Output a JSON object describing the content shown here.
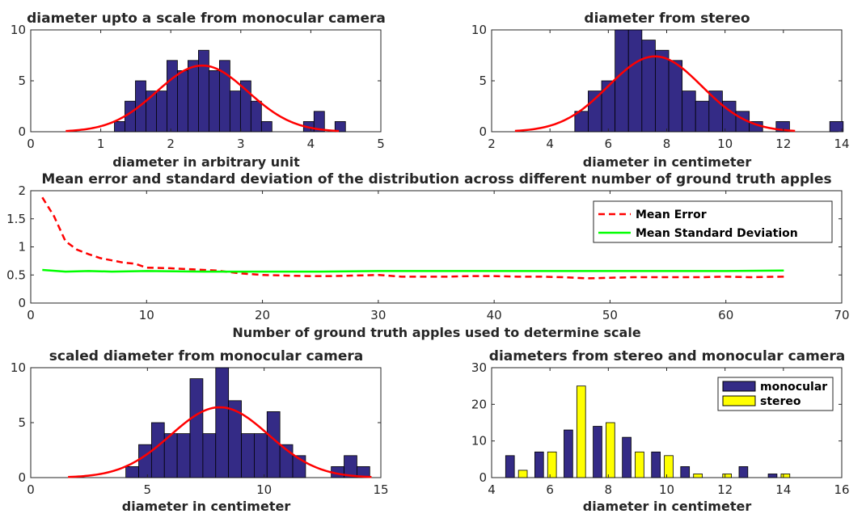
{
  "colors": {
    "bar": "#342b86",
    "bar_edge": "#000000",
    "fit": "#ff0000",
    "mean_error": "#ff0000",
    "mean_std": "#00ff00",
    "stereo": "#ffff00"
  },
  "chart_data": [
    {
      "id": "p1",
      "type": "bar",
      "title": "diameter upto a scale from monocular camera",
      "xlabel": "diameter in arbitrary unit",
      "ylabel": "",
      "xlim": [
        0,
        5
      ],
      "ylim": [
        0,
        10
      ],
      "xticks": [
        0,
        1,
        2,
        3,
        4,
        5
      ],
      "yticks": [
        0,
        5,
        10
      ],
      "bin_width": 0.15,
      "bin_centers": [
        1.27,
        1.42,
        1.57,
        1.72,
        1.87,
        2.02,
        2.17,
        2.32,
        2.47,
        2.62,
        2.77,
        2.92,
        3.07,
        3.22,
        3.37,
        3.52,
        3.67,
        3.82,
        3.97,
        4.12,
        4.27,
        4.42
      ],
      "values": [
        1,
        3,
        5,
        4,
        4,
        7,
        6,
        7,
        8,
        6,
        7,
        4,
        5,
        3,
        1,
        0,
        0,
        0,
        1,
        2,
        0,
        1
      ],
      "fit_curve": {
        "x_from": 0.5,
        "x_to": 4.4,
        "mean": 2.45,
        "sd": 0.65,
        "peak": 6.5
      }
    },
    {
      "id": "p2",
      "type": "bar",
      "title": "diameter from stereo",
      "xlabel": "diameter in centimeter",
      "ylabel": "",
      "xlim": [
        2,
        14
      ],
      "ylim": [
        0,
        10
      ],
      "xticks": [
        2,
        4,
        6,
        8,
        10,
        12,
        14
      ],
      "yticks": [
        0,
        5,
        10
      ],
      "bin_width": 0.46,
      "bin_centers": [
        5.08,
        5.54,
        6.0,
        6.46,
        6.92,
        7.38,
        7.84,
        8.3,
        8.76,
        9.22,
        9.68,
        10.14,
        10.6,
        11.06,
        11.52,
        11.98,
        12.44,
        12.9,
        13.36,
        13.82
      ],
      "values": [
        2,
        4,
        5,
        10,
        10,
        9,
        8,
        7,
        4,
        3,
        4,
        3,
        2,
        1,
        0,
        1,
        0,
        0,
        0,
        1
      ],
      "fit_curve": {
        "x_from": 2.8,
        "x_to": 12.4,
        "mean": 7.6,
        "sd": 1.6,
        "peak": 7.4
      }
    },
    {
      "id": "p3",
      "type": "line",
      "title": "Mean error and standard deviation of the distribution across different number of ground truth apples",
      "xlabel": "Number of ground truth apples used to determine scale",
      "ylabel": "",
      "xlim": [
        0,
        70
      ],
      "ylim": [
        0,
        2
      ],
      "xticks": [
        0,
        10,
        20,
        30,
        40,
        50,
        60,
        70
      ],
      "yticks": [
        0,
        0.5,
        1,
        1.5,
        2
      ],
      "legend_position": "top-right",
      "series": [
        {
          "name": "Mean Error",
          "style": "dashed",
          "x": [
            1,
            2,
            3,
            4,
            5,
            6,
            7,
            8,
            9,
            10,
            12,
            14,
            16,
            18,
            20,
            22,
            24,
            26,
            28,
            30,
            32,
            34,
            36,
            38,
            40,
            42,
            44,
            46,
            48,
            50,
            52,
            54,
            56,
            58,
            60,
            62,
            65
          ],
          "y": [
            1.88,
            1.55,
            1.1,
            0.95,
            0.87,
            0.8,
            0.76,
            0.72,
            0.7,
            0.63,
            0.62,
            0.6,
            0.58,
            0.53,
            0.5,
            0.49,
            0.48,
            0.48,
            0.49,
            0.5,
            0.47,
            0.47,
            0.47,
            0.48,
            0.48,
            0.47,
            0.47,
            0.46,
            0.44,
            0.45,
            0.46,
            0.46,
            0.46,
            0.46,
            0.47,
            0.46,
            0.47
          ]
        },
        {
          "name": "Mean Standard Deviation",
          "style": "solid",
          "x": [
            1,
            3,
            5,
            7,
            10,
            15,
            20,
            25,
            30,
            35,
            40,
            45,
            50,
            55,
            60,
            65
          ],
          "y": [
            0.59,
            0.56,
            0.57,
            0.56,
            0.57,
            0.56,
            0.56,
            0.56,
            0.57,
            0.57,
            0.57,
            0.57,
            0.57,
            0.57,
            0.57,
            0.58
          ]
        }
      ]
    },
    {
      "id": "p4",
      "type": "bar",
      "title": "scaled diameter from monocular camera",
      "xlabel": "diameter in centimeter",
      "ylabel": "",
      "xlim": [
        0,
        15
      ],
      "ylim": [
        0,
        10
      ],
      "xticks": [
        0,
        5,
        10,
        15
      ],
      "yticks": [
        0,
        5,
        10
      ],
      "bin_width": 0.55,
      "bin_centers": [
        4.35,
        4.9,
        5.45,
        6.0,
        6.55,
        7.1,
        7.65,
        8.2,
        8.75,
        9.3,
        9.85,
        10.4,
        10.95,
        11.5,
        12.05,
        12.6,
        13.15,
        13.7,
        14.25
      ],
      "values": [
        1,
        3,
        5,
        4,
        4,
        9,
        4,
        10,
        7,
        4,
        4,
        6,
        3,
        2,
        0,
        0,
        1,
        2,
        1
      ],
      "fit_curve": {
        "x_from": 1.6,
        "x_to": 14.6,
        "mean": 8.1,
        "sd": 2.1,
        "peak": 6.4
      }
    },
    {
      "id": "p5",
      "type": "bar",
      "title": "diameters from stereo and monocular camera",
      "xlabel": "diameter in centimeter",
      "ylabel": "",
      "xlim": [
        4,
        16
      ],
      "ylim": [
        0,
        30
      ],
      "xticks": [
        4,
        6,
        8,
        10,
        12,
        14,
        16
      ],
      "yticks": [
        0,
        10,
        20,
        30
      ],
      "legend_position": "top-right",
      "categories": [
        5,
        6,
        7,
        8,
        9,
        10,
        11,
        12,
        13,
        14
      ],
      "series": [
        {
          "name": "monocular",
          "values": [
            6,
            7,
            13,
            14,
            11,
            7,
            3,
            0,
            3,
            1
          ]
        },
        {
          "name": "stereo",
          "values": [
            2,
            7,
            25,
            15,
            7,
            6,
            1,
            1,
            0,
            1
          ]
        }
      ]
    }
  ]
}
